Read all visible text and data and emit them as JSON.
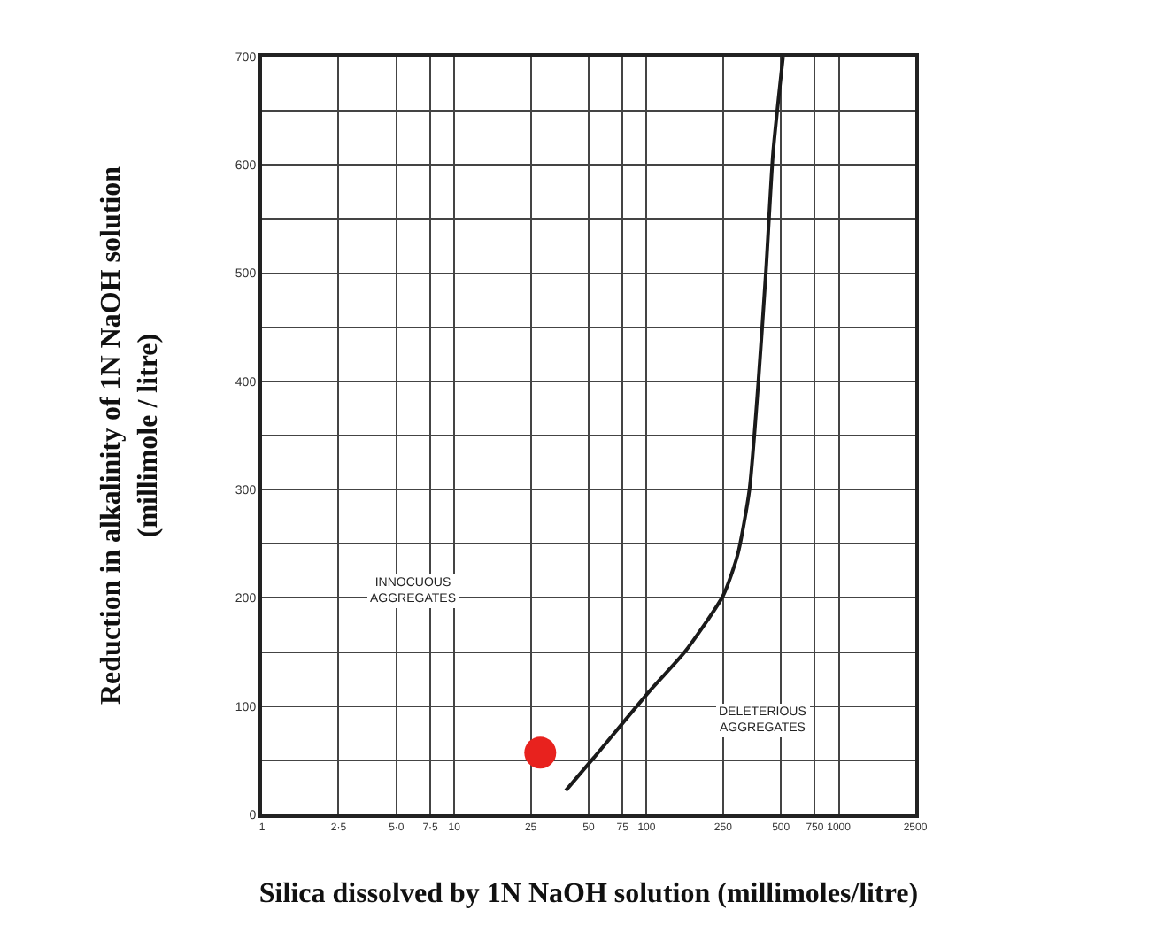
{
  "chart_data": {
    "type": "line",
    "xlabel": "Silica dissolved by 1N NaOH solution (millimoles/litre)",
    "ylabel": "Reduction in alkalinity of 1N NaOH solution\n(millimole / litre)",
    "log": "x",
    "xlim": [
      1,
      2500
    ],
    "ylim": [
      0,
      700
    ],
    "xticks": [
      1,
      {
        "value": 2.5,
        "label": "2·5"
      },
      {
        "value": 5,
        "label": "5·0"
      },
      {
        "value": 7.5,
        "label": "7·5"
      },
      10,
      25,
      50,
      75,
      100,
      250,
      500,
      750,
      1000,
      2500
    ],
    "yticks": [
      0,
      {
        "value": 50,
        "label": null
      },
      100,
      {
        "value": 150,
        "label": null
      },
      200,
      {
        "value": 250,
        "label": null
      },
      300,
      {
        "value": 350,
        "label": null
      },
      400,
      {
        "value": 450,
        "label": null
      },
      500,
      {
        "value": 550,
        "label": null
      },
      600,
      {
        "value": 650,
        "label": null
      },
      700
    ],
    "grid": true,
    "series": [
      {
        "type": "line",
        "color": "#1a1a1a",
        "marker": "none",
        "line_style": "solid",
        "x": [
          38,
          53,
          105,
          158,
          250,
          298,
          343,
          381,
          418,
          455,
          513
        ],
        "values": [
          22,
          52,
          115,
          150,
          202,
          240,
          300,
          398,
          502,
          611,
          700
        ]
      },
      {
        "type": "scatter",
        "color": "#e8221e",
        "marker": "circle",
        "x": [
          28
        ],
        "values": [
          57
        ]
      }
    ],
    "annotations": [
      "INNOCUOUS\nAGGREGATES",
      "DELETERIOUS\nAGGREGATES"
    ]
  }
}
